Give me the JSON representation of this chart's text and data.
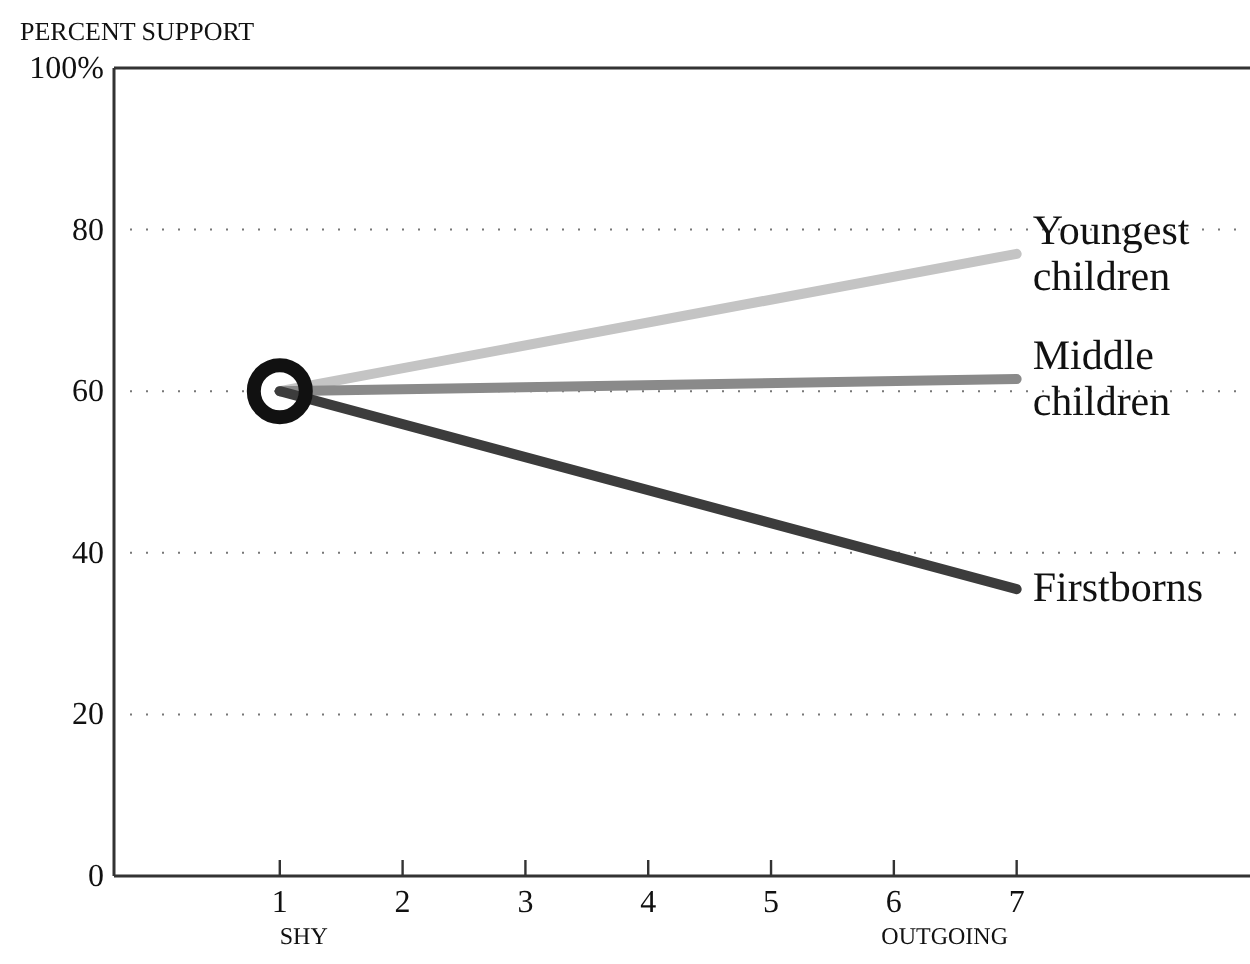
{
  "chart_data": {
    "type": "line",
    "ylabel": "PERCENT SUPPORT",
    "x": [
      1,
      7
    ],
    "series": [
      {
        "name": "Youngest children",
        "color": "#c4c4c4",
        "values": [
          60,
          77
        ]
      },
      {
        "name": "Middle children",
        "color": "#8a8a8a",
        "values": [
          60,
          61.5
        ]
      },
      {
        "name": "Firstborns",
        "color": "#3c3c3c",
        "values": [
          60,
          35.5
        ]
      }
    ],
    "xlim": [
      -0.35,
      8.9
    ],
    "xticks": [
      1,
      2,
      3,
      4,
      5,
      6,
      7
    ],
    "ylim": [
      0,
      100
    ],
    "yticks": [
      0,
      20,
      40,
      60,
      80,
      {
        "value": 100,
        "label": "100%"
      }
    ],
    "grid": "y",
    "line_style": "solid",
    "annotations": [
      "SHY",
      "OUTGOING"
    ]
  }
}
